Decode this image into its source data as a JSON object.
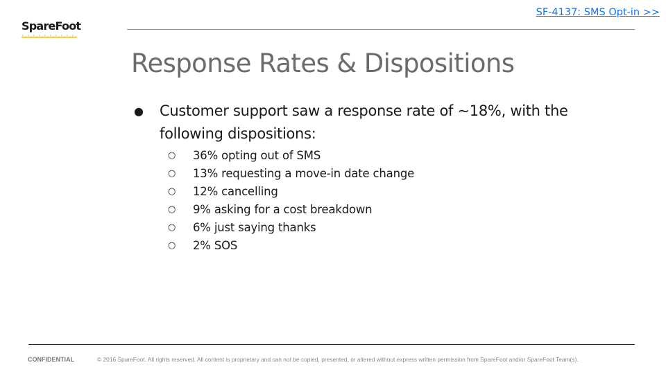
{
  "header": {
    "logo_text": "SpareFoot",
    "link_text": "SF-4137: SMS Opt-in >>"
  },
  "slide": {
    "title": "Response Rates & Dispositions",
    "bullet": "Customer support saw a response rate of ~18%, with the following dispositions:",
    "sub_bullets": [
      "36% opting out of SMS",
      "13% requesting a move-in date change",
      "12% cancelling",
      "9% asking for a cost breakdown",
      "6% just saying thanks",
      "2% SOS"
    ]
  },
  "footer": {
    "confidential": "CONFIDENTIAL",
    "copyright": "© 2016 SpareFoot. All rights reserved. All content is proprietary and can not be copied, presented, or altered without express written permission from SpareFoot and/or SpareFoot Team(s)."
  },
  "colors": {
    "logo_accent": "#f2b705",
    "link": "#1a73e8",
    "title": "#6b6b6b"
  }
}
